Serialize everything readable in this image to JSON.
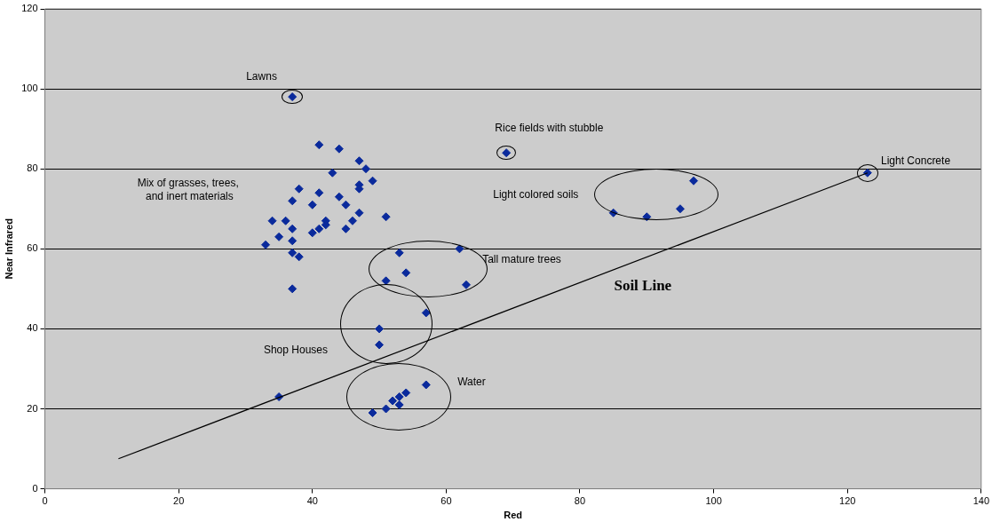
{
  "chart_data": {
    "type": "scatter",
    "xlabel": "Red",
    "ylabel": "Near Infrared",
    "xlim": [
      0,
      140
    ],
    "xticks": [
      0,
      20,
      40,
      60,
      80,
      100,
      120,
      140
    ],
    "ylim": [
      0,
      120
    ],
    "yticks": [
      0,
      20,
      40,
      60,
      80,
      100,
      120
    ],
    "grid": "y",
    "legend": false,
    "series": [
      {
        "type": "scatter",
        "color": "#0a2a9c",
        "marker": "diamond",
        "x": [
          33,
          34,
          35,
          36,
          37,
          37,
          37,
          37,
          37,
          38,
          38,
          40,
          40,
          41,
          41,
          41,
          42,
          42,
          43,
          44,
          44,
          45,
          45,
          46,
          47,
          47,
          47,
          47,
          48,
          49,
          51,
          37,
          69,
          85,
          90,
          95,
          97,
          123,
          53,
          62,
          54,
          51,
          63,
          57,
          50,
          50,
          35,
          57,
          54,
          53,
          52,
          53,
          51,
          49
        ],
        "values": [
          61,
          67,
          63,
          67,
          72,
          65,
          62,
          59,
          50,
          75,
          58,
          71,
          64,
          86,
          74,
          65,
          67,
          66,
          79,
          85,
          73,
          71,
          65,
          67,
          82,
          76,
          75,
          69,
          80,
          77,
          68,
          98,
          84,
          69,
          68,
          70,
          77,
          79,
          59,
          60,
          54,
          52,
          51,
          44,
          40,
          36,
          23,
          26,
          24,
          23,
          22,
          21,
          20,
          19
        ]
      },
      {
        "type": "line",
        "color": "#000000",
        "x": [
          11,
          123
        ],
        "values": [
          7.5,
          79
        ]
      }
    ],
    "annotations": [
      "Lawns",
      "Rice fields with stubble",
      "Mix of grasses, trees,\n and inert materials",
      "Light colored soils",
      "Light Concrete",
      "Tall mature trees",
      "Soil Line",
      "Shop Houses",
      "Water"
    ]
  }
}
